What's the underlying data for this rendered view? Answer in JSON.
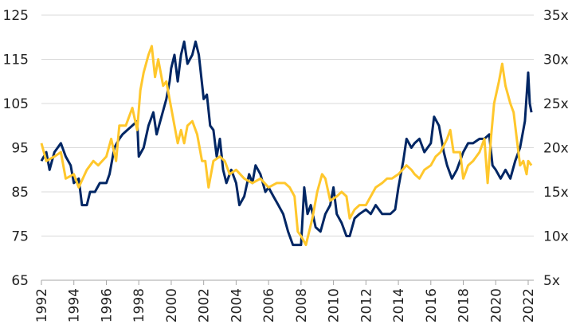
{
  "chart_data": {
    "type": "line",
    "title": "",
    "xlabel": "",
    "ylabel": "",
    "y2label": "",
    "grid": true,
    "xlim": [
      1992,
      2022.2
    ],
    "ylim": [
      65,
      125
    ],
    "y2lim": [
      5,
      35
    ],
    "x_ticks": [
      "1992",
      "1994",
      "1996",
      "1998",
      "2000",
      "2002",
      "2004",
      "2006",
      "2008",
      "2010",
      "2012",
      "2014",
      "2016",
      "2018",
      "2020",
      "2022"
    ],
    "y_ticks": [
      "65",
      "75",
      "85",
      "95",
      "105",
      "115",
      "125"
    ],
    "y2_ticks": [
      "5x",
      "10x",
      "15x",
      "20x",
      "25x",
      "30x",
      "35x"
    ],
    "colors": {
      "navy": "#002664",
      "gold": "#FFC72C"
    },
    "series": [
      {
        "name": "navy",
        "axis": "left",
        "color": "#002664",
        "x": [
          1992.0,
          1992.3,
          1992.5,
          1992.8,
          1993.0,
          1993.2,
          1993.5,
          1993.8,
          1994.0,
          1994.3,
          1994.5,
          1994.8,
          1995.0,
          1995.3,
          1995.6,
          1996.0,
          1996.2,
          1996.5,
          1996.8,
          1997.0,
          1997.3,
          1997.6,
          1997.9,
          1998.0,
          1998.3,
          1998.6,
          1998.9,
          1999.1,
          1999.4,
          1999.7,
          1999.9,
          2000.0,
          2000.2,
          2000.4,
          2000.6,
          2000.8,
          2001.0,
          2001.3,
          2001.5,
          2001.7,
          2002.0,
          2002.2,
          2002.4,
          2002.6,
          2002.8,
          2003.0,
          2003.2,
          2003.4,
          2003.7,
          2004.0,
          2004.2,
          2004.5,
          2004.8,
          2005.0,
          2005.2,
          2005.5,
          2005.8,
          2006.0,
          2006.3,
          2006.6,
          2006.9,
          2007.2,
          2007.5,
          2007.8,
          2008.0,
          2008.2,
          2008.4,
          2008.6,
          2008.9,
          2009.2,
          2009.5,
          2009.8,
          2010.0,
          2010.2,
          2010.5,
          2010.8,
          2011.0,
          2011.3,
          2011.6,
          2012.0,
          2012.3,
          2012.6,
          2013.0,
          2013.5,
          2013.8,
          2014.0,
          2014.3,
          2014.5,
          2014.8,
          2015.0,
          2015.3,
          2015.6,
          2016.0,
          2016.2,
          2016.5,
          2016.8,
          2017.0,
          2017.3,
          2017.6,
          2018.0,
          2018.3,
          2018.6,
          2019.0,
          2019.3,
          2019.6,
          2019.8,
          2020.0,
          2020.3,
          2020.6,
          2020.9,
          2021.2,
          2021.5,
          2021.8,
          2022.0,
          2022.1,
          2022.2
        ],
        "y": [
          92,
          94,
          90,
          94,
          95,
          96,
          93,
          91,
          87,
          88,
          82,
          82,
          85,
          85,
          87,
          87,
          89,
          95,
          97,
          98,
          99,
          100,
          101,
          93,
          95,
          100,
          103,
          98,
          102,
          106,
          110,
          113,
          116,
          110,
          116,
          119,
          114,
          116,
          119,
          116,
          106,
          107,
          100,
          99,
          93,
          97,
          90,
          87,
          90,
          87,
          82,
          84,
          89,
          87,
          91,
          89,
          85,
          86,
          84,
          82,
          80,
          76,
          73,
          73,
          73,
          86,
          80,
          82,
          77,
          76,
          80,
          82,
          86,
          80,
          78,
          75,
          75,
          79,
          80,
          81,
          80,
          82,
          80,
          80,
          81,
          86,
          92,
          97,
          95,
          96,
          97,
          94,
          96,
          102,
          100,
          94,
          91,
          88,
          90,
          94,
          96,
          96,
          97,
          97,
          98,
          91,
          90,
          88,
          90,
          88,
          92,
          95,
          101,
          112,
          105,
          103
        ]
      },
      {
        "name": "gold",
        "axis": "right",
        "color": "#FFC72C",
        "x": [
          1992.0,
          1992.3,
          1992.8,
          1993.2,
          1993.5,
          1994.0,
          1994.3,
          1994.8,
          1995.2,
          1995.5,
          1996.0,
          1996.3,
          1996.6,
          1996.8,
          1997.2,
          1997.6,
          1997.9,
          1998.1,
          1998.3,
          1998.6,
          1998.8,
          1999.0,
          1999.2,
          1999.5,
          1999.7,
          2000.0,
          2000.2,
          2000.4,
          2000.6,
          2000.8,
          2001.0,
          2001.3,
          2001.6,
          2001.9,
          2002.1,
          2002.3,
          2002.6,
          2003.0,
          2003.3,
          2003.6,
          2004.0,
          2004.5,
          2005.0,
          2005.5,
          2006.0,
          2006.5,
          2007.0,
          2007.3,
          2007.6,
          2007.8,
          2008.0,
          2008.3,
          2008.7,
          2009.0,
          2009.3,
          2009.5,
          2009.8,
          2010.2,
          2010.5,
          2010.8,
          2011.0,
          2011.3,
          2011.6,
          2012.0,
          2012.3,
          2012.6,
          2013.0,
          2013.3,
          2013.6,
          2014.0,
          2014.5,
          2014.8,
          2015.0,
          2015.3,
          2015.6,
          2016.0,
          2016.3,
          2016.6,
          2017.0,
          2017.2,
          2017.4,
          2017.8,
          2018.0,
          2018.3,
          2018.6,
          2019.0,
          2019.3,
          2019.5,
          2019.7,
          2019.9,
          2020.2,
          2020.4,
          2020.6,
          2020.9,
          2021.1,
          2021.3,
          2021.5,
          2021.7,
          2021.9,
          2022.0,
          2022.2
        ],
        "y": [
          20.5,
          18.5,
          19,
          19.5,
          16.5,
          17,
          15.5,
          17.5,
          18.5,
          18,
          19,
          21,
          18.5,
          22.5,
          22.5,
          24.5,
          22,
          26.5,
          28.5,
          30.5,
          31.5,
          28,
          30,
          27,
          27.5,
          24.5,
          22.5,
          20.5,
          22,
          20.5,
          22.5,
          23,
          21.5,
          18.5,
          18.5,
          15.5,
          18.5,
          19,
          18.5,
          17,
          17.5,
          16.5,
          16,
          16.5,
          15.5,
          16,
          16,
          15.5,
          14.5,
          10.5,
          10,
          9,
          12,
          15,
          17,
          16.5,
          14,
          14.5,
          15,
          14.5,
          12,
          13,
          13.5,
          13.5,
          14.5,
          15.5,
          16,
          16.5,
          16.5,
          17,
          18,
          17.5,
          17,
          16.5,
          17.5,
          18,
          19,
          19.5,
          21,
          22,
          19.5,
          19.5,
          16.5,
          18,
          18.5,
          19.5,
          21,
          16,
          21,
          25,
          27.5,
          29.5,
          27,
          25,
          24,
          21,
          18,
          18.5,
          17,
          18.5,
          18
        ]
      }
    ]
  }
}
